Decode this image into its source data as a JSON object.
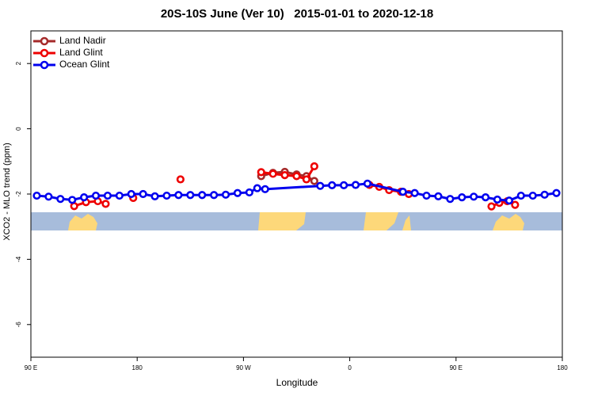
{
  "chart_data": {
    "type": "line",
    "title": "20S-10S June (Ver 10)   2015-01-01 to 2020-12-18",
    "xlabel": "Longitude",
    "ylabel": "XCO2 - MLO trend (ppm)",
    "xlim": [
      -90,
      180
    ],
    "ylim": [
      -7,
      3
    ],
    "x_ticks": [
      {
        "value": -90,
        "label": "90 E"
      },
      {
        "value": -36,
        "label": "180"
      },
      {
        "value": 18,
        "label": "90 W"
      },
      {
        "value": 72,
        "label": "0"
      },
      {
        "value": 126,
        "label": "90 E"
      },
      {
        "value": 180,
        "label": "180"
      }
    ],
    "y_ticks": [
      -6,
      -4,
      -2,
      0,
      2
    ],
    "grid": false,
    "legend_position": "top-left",
    "series": [
      {
        "name": "Land Nadir",
        "color": "#a52a2a",
        "x": [
          27,
          33,
          39,
          45,
          50,
          54
        ],
        "y": [
          -1.45,
          -1.35,
          -1.32,
          -1.4,
          -1.45,
          -1.6
        ]
      },
      {
        "name": "Land Glint",
        "color": "#ee0000",
        "segments": [
          {
            "x": [
              -68,
              -62,
              -56,
              -52
            ],
            "y": [
              -2.37,
              -2.25,
              -2.22,
              -2.3
            ]
          },
          {
            "x": [
              -38
            ],
            "y": [
              -2.12
            ]
          },
          {
            "x": [
              -14
            ],
            "y": [
              -1.55
            ]
          },
          {
            "x": [
              27,
              33,
              39,
              45,
              50,
              54
            ],
            "y": [
              -1.33,
              -1.38,
              -1.42,
              -1.45,
              -1.55,
              -1.15
            ]
          },
          {
            "x": [
              82,
              87,
              92,
              98,
              102
            ],
            "y": [
              -1.72,
              -1.78,
              -1.88,
              -1.93,
              -2.0
            ]
          },
          {
            "x": [
              144,
              148,
              152,
              156
            ],
            "y": [
              -2.38,
              -2.27,
              -2.22,
              -2.33
            ]
          }
        ]
      },
      {
        "name": "Ocean Glint",
        "color": "#0000ee",
        "x": [
          -87,
          -81,
          -75,
          -69,
          -63,
          -57,
          -51,
          -45,
          -39,
          -33,
          -27,
          -21,
          -15,
          -9,
          -3,
          3,
          9,
          15,
          21,
          25,
          29,
          57,
          63,
          69,
          75,
          81,
          99,
          105,
          111,
          117,
          123,
          129,
          135,
          141,
          147,
          153,
          159,
          165,
          171,
          177
        ],
        "y": [
          -2.05,
          -2.08,
          -2.15,
          -2.18,
          -2.1,
          -2.05,
          -2.05,
          -2.05,
          -2.0,
          -2.0,
          -2.07,
          -2.05,
          -2.03,
          -2.03,
          -2.03,
          -2.03,
          -2.02,
          -1.97,
          -1.95,
          -1.82,
          -1.85,
          -1.75,
          -1.73,
          -1.73,
          -1.72,
          -1.68,
          -1.93,
          -1.97,
          -2.05,
          -2.07,
          -2.15,
          -2.1,
          -2.08,
          -2.1,
          -2.17,
          -2.2,
          -2.05,
          -2.05,
          -2.02,
          -1.97
        ]
      }
    ]
  }
}
